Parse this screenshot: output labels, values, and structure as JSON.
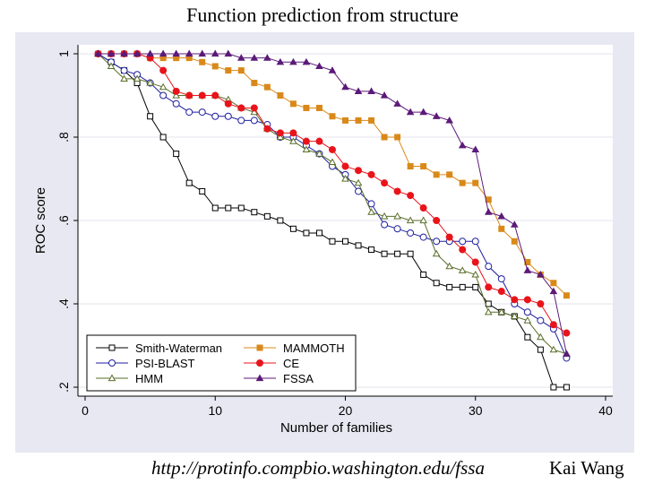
{
  "slide": {
    "title": "Function prediction from structure",
    "url": "http://protinfo.compbio.washington.edu/fssa",
    "author": "Kai Wang"
  },
  "chart_data": {
    "type": "line",
    "title": "Function prediction from structure",
    "xlabel": "Number of families",
    "ylabel": "ROC score",
    "xlim": [
      0,
      40
    ],
    "ylim": [
      0.2,
      1.0
    ],
    "xticks": [
      0,
      10,
      20,
      30,
      40
    ],
    "yticks": [
      0.2,
      0.4,
      0.6,
      0.8,
      1.0
    ],
    "ytick_labels": [
      ".2",
      ".4",
      ".6",
      ".8",
      "1"
    ],
    "grid": true,
    "legend_position": "bottom-left",
    "x": [
      1,
      2,
      3,
      4,
      5,
      6,
      7,
      8,
      9,
      10,
      11,
      12,
      13,
      14,
      15,
      16,
      17,
      18,
      19,
      20,
      21,
      22,
      23,
      24,
      25,
      26,
      27,
      28,
      29,
      30,
      31,
      32,
      33,
      34,
      35,
      36,
      37
    ],
    "series": [
      {
        "name": "Smith-Waterman",
        "color": "#000000",
        "marker": "square",
        "filled": false,
        "values": [
          1.0,
          0.98,
          0.96,
          0.93,
          0.85,
          0.8,
          0.76,
          0.69,
          0.67,
          0.63,
          0.63,
          0.63,
          0.62,
          0.61,
          0.6,
          0.58,
          0.57,
          0.57,
          0.55,
          0.55,
          0.54,
          0.53,
          0.52,
          0.52,
          0.52,
          0.47,
          0.45,
          0.44,
          0.44,
          0.44,
          0.4,
          0.38,
          0.37,
          0.32,
          0.29,
          0.2,
          0.2
        ]
      },
      {
        "name": "PSI-BLAST",
        "color": "#1f1f9f",
        "marker": "circle",
        "filled": false,
        "values": [
          1.0,
          0.98,
          0.96,
          0.95,
          0.93,
          0.9,
          0.88,
          0.86,
          0.86,
          0.85,
          0.85,
          0.84,
          0.84,
          0.83,
          0.8,
          0.8,
          0.78,
          0.76,
          0.73,
          0.71,
          0.67,
          0.64,
          0.59,
          0.58,
          0.57,
          0.56,
          0.55,
          0.55,
          0.55,
          0.55,
          0.49,
          0.46,
          0.4,
          0.38,
          0.36,
          0.34,
          0.27
        ]
      },
      {
        "name": "HMM",
        "color": "#5a6e2a",
        "marker": "triangle",
        "filled": false,
        "values": [
          1.0,
          0.97,
          0.94,
          0.94,
          0.93,
          0.92,
          0.9,
          0.9,
          0.9,
          0.9,
          0.89,
          0.87,
          0.86,
          0.82,
          0.8,
          0.79,
          0.77,
          0.76,
          0.74,
          0.7,
          0.69,
          0.62,
          0.61,
          0.61,
          0.6,
          0.6,
          0.52,
          0.49,
          0.48,
          0.47,
          0.38,
          0.38,
          0.37,
          0.36,
          0.32,
          0.29,
          0.28
        ]
      },
      {
        "name": "MAMMOTH",
        "color": "#d9891a",
        "marker": "square",
        "filled": true,
        "values": [
          1.0,
          1.0,
          1.0,
          1.0,
          0.99,
          0.99,
          0.99,
          0.99,
          0.98,
          0.97,
          0.96,
          0.96,
          0.93,
          0.92,
          0.9,
          0.88,
          0.87,
          0.87,
          0.85,
          0.84,
          0.84,
          0.84,
          0.8,
          0.8,
          0.73,
          0.73,
          0.71,
          0.71,
          0.69,
          0.69,
          0.65,
          0.58,
          0.55,
          0.5,
          0.47,
          0.45,
          0.42
        ]
      },
      {
        "name": "CE",
        "color": "#e8141a",
        "marker": "circle",
        "filled": true,
        "values": [
          1.0,
          1.0,
          1.0,
          1.0,
          0.99,
          0.96,
          0.91,
          0.9,
          0.9,
          0.9,
          0.88,
          0.87,
          0.87,
          0.82,
          0.81,
          0.81,
          0.79,
          0.79,
          0.77,
          0.73,
          0.72,
          0.71,
          0.69,
          0.67,
          0.66,
          0.63,
          0.6,
          0.56,
          0.53,
          0.5,
          0.44,
          0.43,
          0.41,
          0.41,
          0.4,
          0.35,
          0.33
        ]
      },
      {
        "name": "FSSA",
        "color": "#5c1a78",
        "marker": "triangle",
        "filled": true,
        "values": [
          1.0,
          1.0,
          1.0,
          1.0,
          1.0,
          1.0,
          1.0,
          1.0,
          1.0,
          1.0,
          1.0,
          0.99,
          0.99,
          0.99,
          0.98,
          0.98,
          0.98,
          0.97,
          0.96,
          0.92,
          0.91,
          0.91,
          0.9,
          0.88,
          0.86,
          0.86,
          0.85,
          0.84,
          0.78,
          0.77,
          0.62,
          0.61,
          0.59,
          0.48,
          0.47,
          0.43,
          0.28
        ]
      }
    ]
  }
}
